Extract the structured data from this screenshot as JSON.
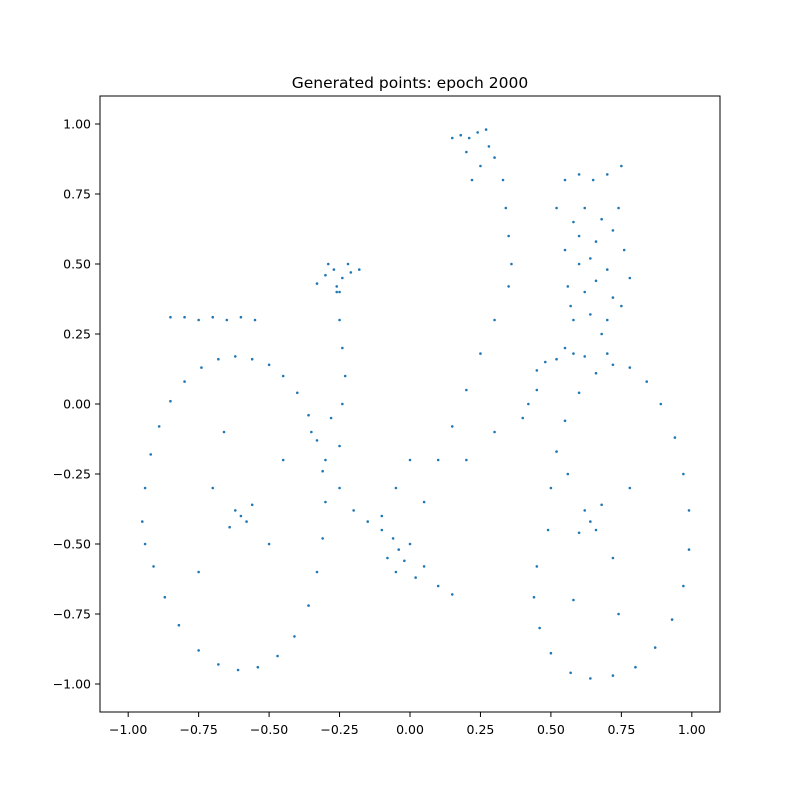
{
  "chart_data": {
    "type": "scatter",
    "title": "Generated points: epoch 2000",
    "xlabel": "",
    "ylabel": "",
    "xlim": [
      -1.1,
      1.1
    ],
    "ylim": [
      -1.1,
      1.1
    ],
    "x_ticks": [
      {
        "value": -1.0,
        "label": "−1.00"
      },
      {
        "value": -0.75,
        "label": "−0.75"
      },
      {
        "value": -0.5,
        "label": "−0.50"
      },
      {
        "value": -0.25,
        "label": "−0.25"
      },
      {
        "value": 0.0,
        "label": "0.00"
      },
      {
        "value": 0.25,
        "label": "0.25"
      },
      {
        "value": 0.5,
        "label": "0.50"
      },
      {
        "value": 0.75,
        "label": "0.75"
      },
      {
        "value": 1.0,
        "label": "1.00"
      }
    ],
    "y_ticks": [
      {
        "value": 1.0,
        "label": "1.00"
      },
      {
        "value": 0.75,
        "label": "0.75"
      },
      {
        "value": 0.5,
        "label": "0.50"
      },
      {
        "value": 0.25,
        "label": "0.25"
      },
      {
        "value": 0.0,
        "label": "0.00"
      },
      {
        "value": -0.25,
        "label": "−0.25"
      },
      {
        "value": -0.5,
        "label": "−0.50"
      },
      {
        "value": -0.75,
        "label": "−0.75"
      },
      {
        "value": -1.0,
        "label": "−1.00"
      }
    ],
    "grid": false,
    "legend": "none",
    "marker_color": "#1f77b4",
    "series": [
      {
        "points": [
          [
            -0.95,
            -0.42
          ],
          [
            -0.94,
            -0.3
          ],
          [
            -0.92,
            -0.18
          ],
          [
            -0.89,
            -0.08
          ],
          [
            -0.85,
            0.01
          ],
          [
            -0.8,
            0.08
          ],
          [
            -0.74,
            0.13
          ],
          [
            -0.68,
            0.16
          ],
          [
            -0.62,
            0.17
          ],
          [
            -0.56,
            0.16
          ],
          [
            -0.5,
            0.14
          ],
          [
            -0.45,
            0.1
          ],
          [
            -0.4,
            0.04
          ],
          [
            -0.36,
            -0.04
          ],
          [
            -0.33,
            -0.13
          ],
          [
            -0.31,
            -0.24
          ],
          [
            -0.3,
            -0.35
          ],
          [
            -0.31,
            -0.48
          ],
          [
            -0.33,
            -0.6
          ],
          [
            -0.36,
            -0.72
          ],
          [
            -0.41,
            -0.83
          ],
          [
            -0.47,
            -0.9
          ],
          [
            -0.54,
            -0.94
          ],
          [
            -0.61,
            -0.95
          ],
          [
            -0.68,
            -0.93
          ],
          [
            -0.75,
            -0.88
          ],
          [
            -0.82,
            -0.79
          ],
          [
            -0.87,
            -0.69
          ],
          [
            -0.91,
            -0.58
          ],
          [
            -0.94,
            -0.5
          ],
          [
            -0.6,
            -0.4
          ],
          [
            -0.62,
            -0.38
          ],
          [
            -0.58,
            -0.42
          ],
          [
            -0.64,
            -0.44
          ],
          [
            -0.56,
            -0.36
          ],
          [
            -0.7,
            -0.3
          ],
          [
            -0.5,
            -0.5
          ],
          [
            -0.75,
            -0.6
          ],
          [
            -0.45,
            -0.2
          ],
          [
            -0.66,
            -0.1
          ],
          [
            0.49,
            -0.45
          ],
          [
            0.5,
            -0.3
          ],
          [
            0.52,
            -0.17
          ],
          [
            0.55,
            -0.06
          ],
          [
            0.6,
            0.04
          ],
          [
            0.66,
            0.11
          ],
          [
            0.72,
            0.14
          ],
          [
            0.78,
            0.13
          ],
          [
            0.84,
            0.08
          ],
          [
            0.89,
            0.0
          ],
          [
            0.94,
            -0.12
          ],
          [
            0.97,
            -0.25
          ],
          [
            0.99,
            -0.38
          ],
          [
            0.99,
            -0.52
          ],
          [
            0.97,
            -0.65
          ],
          [
            0.93,
            -0.77
          ],
          [
            0.87,
            -0.87
          ],
          [
            0.8,
            -0.94
          ],
          [
            0.72,
            -0.97
          ],
          [
            0.64,
            -0.98
          ],
          [
            0.57,
            -0.96
          ],
          [
            0.5,
            -0.89
          ],
          [
            0.46,
            -0.8
          ],
          [
            0.44,
            -0.69
          ],
          [
            0.45,
            -0.58
          ],
          [
            0.64,
            -0.42
          ],
          [
            0.62,
            -0.38
          ],
          [
            0.66,
            -0.45
          ],
          [
            0.6,
            -0.46
          ],
          [
            0.68,
            -0.36
          ],
          [
            0.72,
            -0.55
          ],
          [
            0.56,
            -0.25
          ],
          [
            0.78,
            -0.3
          ],
          [
            0.58,
            -0.7
          ],
          [
            0.74,
            -0.75
          ],
          [
            -0.04,
            -0.52
          ],
          [
            -0.06,
            -0.48
          ],
          [
            -0.02,
            -0.56
          ],
          [
            -0.08,
            -0.55
          ],
          [
            0.0,
            -0.5
          ],
          [
            -0.05,
            -0.6
          ],
          [
            0.02,
            -0.62
          ],
          [
            -0.1,
            -0.45
          ],
          [
            0.05,
            -0.58
          ],
          [
            0.1,
            -0.65
          ],
          [
            0.15,
            -0.68
          ],
          [
            -0.3,
            -0.2
          ],
          [
            -0.25,
            -0.3
          ],
          [
            -0.2,
            -0.38
          ],
          [
            -0.15,
            -0.42
          ],
          [
            -0.1,
            -0.4
          ],
          [
            -0.35,
            -0.1
          ],
          [
            -0.28,
            -0.05
          ],
          [
            0.05,
            -0.35
          ],
          [
            0.1,
            -0.2
          ],
          [
            0.15,
            -0.08
          ],
          [
            0.2,
            0.05
          ],
          [
            0.25,
            0.18
          ],
          [
            0.3,
            0.3
          ],
          [
            0.35,
            0.42
          ],
          [
            0.2,
            -0.2
          ],
          [
            0.3,
            -0.1
          ],
          [
            0.4,
            -0.05
          ],
          [
            0.45,
            0.05
          ],
          [
            0.0,
            -0.2
          ],
          [
            -0.05,
            -0.3
          ],
          [
            0.36,
            0.5
          ],
          [
            0.35,
            0.6
          ],
          [
            0.34,
            0.7
          ],
          [
            0.33,
            0.8
          ],
          [
            0.3,
            0.88
          ],
          [
            0.28,
            0.92
          ],
          [
            0.15,
            0.95
          ],
          [
            0.18,
            0.96
          ],
          [
            0.21,
            0.95
          ],
          [
            0.24,
            0.97
          ],
          [
            0.27,
            0.98
          ],
          [
            0.2,
            0.9
          ],
          [
            0.25,
            0.85
          ],
          [
            0.22,
            0.8
          ],
          [
            -0.25,
            -0.15
          ],
          [
            -0.24,
            0.0
          ],
          [
            -0.23,
            0.1
          ],
          [
            -0.24,
            0.2
          ],
          [
            -0.25,
            0.3
          ],
          [
            -0.26,
            0.4
          ],
          [
            -0.3,
            0.46
          ],
          [
            -0.27,
            0.48
          ],
          [
            -0.24,
            0.45
          ],
          [
            -0.21,
            0.47
          ],
          [
            -0.33,
            0.43
          ],
          [
            -0.26,
            0.42
          ],
          [
            -0.22,
            0.5
          ],
          [
            -0.18,
            0.48
          ],
          [
            -0.29,
            0.5
          ],
          [
            -0.25,
            0.4
          ],
          [
            -0.85,
            0.31
          ],
          [
            -0.8,
            0.31
          ],
          [
            -0.75,
            0.3
          ],
          [
            -0.7,
            0.31
          ],
          [
            -0.65,
            0.3
          ],
          [
            -0.6,
            0.31
          ],
          [
            -0.55,
            0.3
          ],
          [
            0.55,
            0.8
          ],
          [
            0.6,
            0.82
          ],
          [
            0.65,
            0.8
          ],
          [
            0.7,
            0.82
          ],
          [
            0.75,
            0.85
          ],
          [
            0.52,
            0.7
          ],
          [
            0.58,
            0.65
          ],
          [
            0.62,
            0.7
          ],
          [
            0.68,
            0.66
          ],
          [
            0.74,
            0.7
          ],
          [
            0.55,
            0.55
          ],
          [
            0.6,
            0.5
          ],
          [
            0.64,
            0.52
          ],
          [
            0.7,
            0.48
          ],
          [
            0.76,
            0.55
          ],
          [
            0.56,
            0.42
          ],
          [
            0.62,
            0.4
          ],
          [
            0.66,
            0.44
          ],
          [
            0.72,
            0.38
          ],
          [
            0.78,
            0.45
          ],
          [
            0.58,
            0.3
          ],
          [
            0.64,
            0.32
          ],
          [
            0.7,
            0.3
          ],
          [
            0.75,
            0.35
          ],
          [
            0.6,
            0.6
          ],
          [
            0.66,
            0.58
          ],
          [
            0.72,
            0.62
          ],
          [
            0.57,
            0.35
          ],
          [
            0.68,
            0.25
          ],
          [
            0.48,
            0.15
          ],
          [
            0.52,
            0.16
          ],
          [
            0.58,
            0.18
          ],
          [
            0.62,
            0.17
          ],
          [
            0.7,
            0.18
          ],
          [
            0.45,
            0.12
          ],
          [
            0.42,
            0.0
          ],
          [
            0.55,
            0.2
          ]
        ]
      }
    ]
  }
}
